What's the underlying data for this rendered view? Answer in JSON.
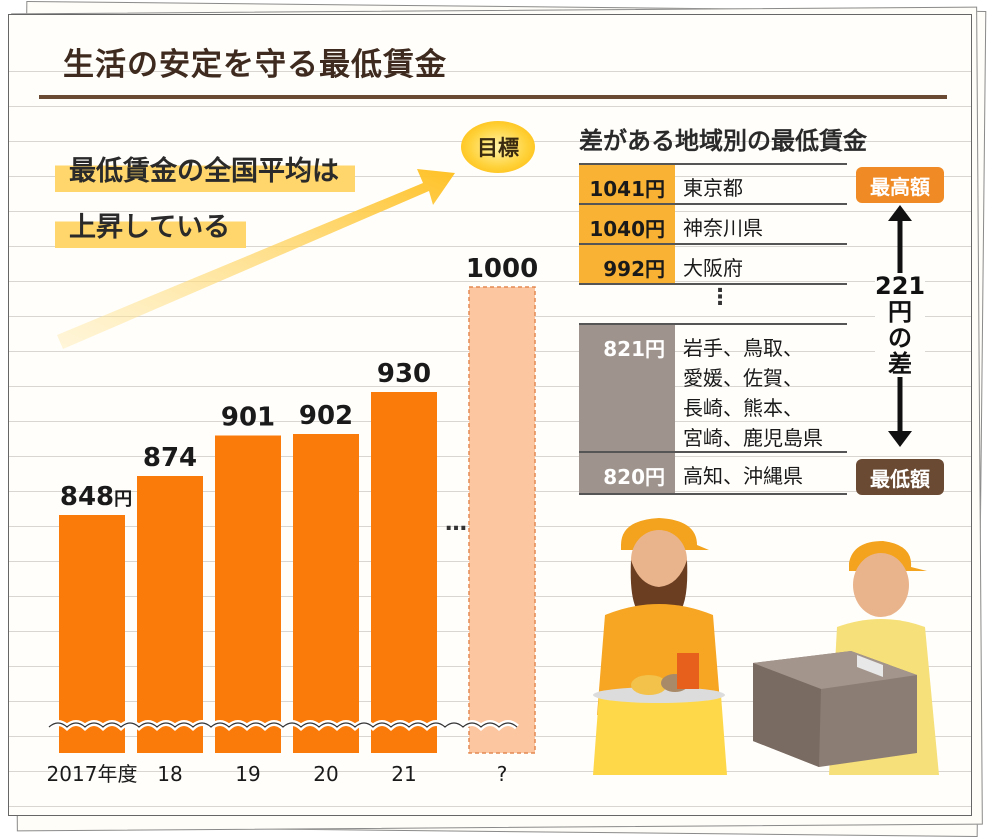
{
  "title": "生活の安定を守る最低賃金",
  "headline": [
    "最低賃金の全国平均は",
    "上昇している"
  ],
  "goal_label": "目標",
  "ellipsis": "…",
  "unit": "円",
  "chart_data": {
    "type": "bar",
    "categories": [
      "2017年度",
      "18",
      "19",
      "20",
      "21",
      "?"
    ],
    "values": [
      848,
      874,
      901,
      902,
      930,
      1000
    ],
    "data_labels": [
      "848",
      "874",
      "901",
      "902",
      "930",
      "1000"
    ],
    "goal_index": 5,
    "ylim": [
      700,
      1060
    ],
    "color": "#fb7b0a",
    "goal_color": "#fcc7a0"
  },
  "regional": {
    "title": "差がある地域別の最低賃金",
    "rows": [
      {
        "value": "1041円",
        "region": "東京都",
        "shade": "orange"
      },
      {
        "value": "1040円",
        "region": "神奈川県",
        "shade": "orange"
      },
      {
        "value": "992円",
        "region": "大阪府",
        "shade": "orange"
      },
      {
        "value": "821円",
        "region": "岩手、鳥取、\n愛媛、佐賀、\n長崎、熊本、\n宮崎、鹿児島県",
        "shade": "gray"
      },
      {
        "value": "820円",
        "region": "高知、沖縄県",
        "shade": "gray"
      }
    ],
    "dots": "⋮",
    "max_label": "最高額",
    "min_label": "最低額",
    "diff_number": "221",
    "diff_text": [
      "円",
      "の",
      "差"
    ]
  },
  "colors": {
    "bar": "#fb7b0a",
    "goal_bar": "#fcc7a0",
    "highlight": "#ffd66b",
    "brown": "#6b4a33",
    "orange_tag": "#f08a24"
  }
}
